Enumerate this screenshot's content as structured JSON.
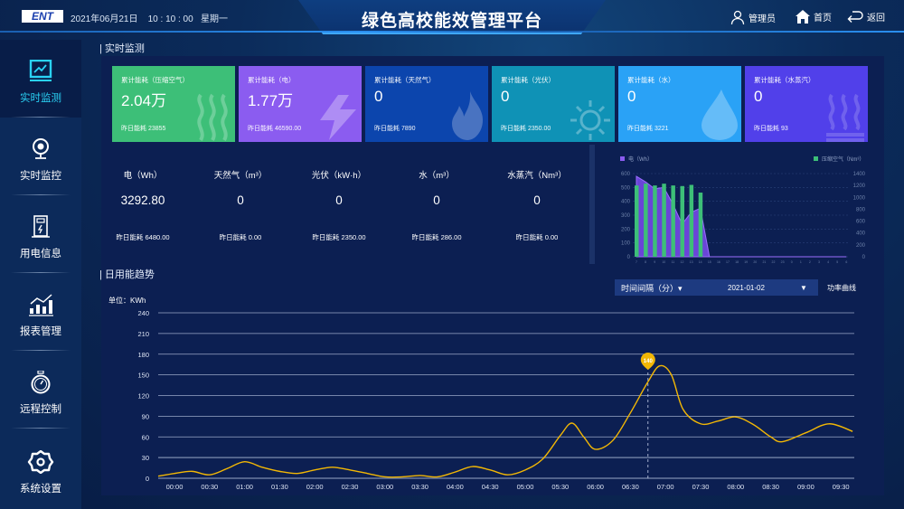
{
  "header": {
    "logo": "ENT",
    "date": "2021年06月21日",
    "time": "10 : 10 : 00",
    "weekday": "星期一",
    "title": "绿色高校能效管理平台",
    "user_label": "管理员",
    "home_label": "首页",
    "back_label": "返回"
  },
  "sidebar": {
    "items": [
      {
        "label": "实时监测",
        "icon": "monitor-chart-icon",
        "active": true
      },
      {
        "label": "实时监控",
        "icon": "webcam-icon"
      },
      {
        "label": "用电信息",
        "icon": "electric-cabinet-icon"
      },
      {
        "label": "报表管理",
        "icon": "bar-trend-icon"
      },
      {
        "label": "远程控制",
        "icon": "stopwatch-icon"
      },
      {
        "label": "系统设置",
        "icon": "gear-icon"
      }
    ]
  },
  "realtime": {
    "section_title": "实时监测",
    "cards": [
      {
        "title": "累计能耗（压缩空气）",
        "value": "2.04万",
        "yesterday": "昨日能耗 23855",
        "color": "#3dbf78",
        "icon": "steam-waves-icon"
      },
      {
        "title": "累计能耗（电）",
        "value": "1.77万",
        "yesterday": "昨日能耗 46590.00",
        "color": "#8b5cf0",
        "icon": "lightning-icon"
      },
      {
        "title": "累计能耗（天然气）",
        "value": "0",
        "yesterday": "昨日能耗 7890",
        "color": "#0c45ad",
        "icon": "flame-icon"
      },
      {
        "title": "累计能耗（光伏）",
        "value": "0",
        "yesterday": "昨日能耗 2350.00",
        "color": "#0f92b6",
        "icon": "sun-icon"
      },
      {
        "title": "累计能耗（水）",
        "value": "0",
        "yesterday": "昨日能耗 3221",
        "color": "#2aa2f6",
        "icon": "water-drop-icon"
      },
      {
        "title": "累计能耗（水蒸汽）",
        "value": "0",
        "yesterday": "昨日能耗 93",
        "color": "#5140ea",
        "icon": "steam-icon"
      }
    ],
    "stats": [
      {
        "title": "电（Wh）",
        "value": "3292.80",
        "yesterday": "昨日能耗 6480.00"
      },
      {
        "title": "天然气（m³）",
        "value": "0",
        "yesterday": "昨日能耗 0.00"
      },
      {
        "title": "光伏（kW·h）",
        "value": "0",
        "yesterday": "昨日能耗 2350.00"
      },
      {
        "title": "水（m³）",
        "value": "0",
        "yesterday": "昨日能耗 286.00"
      },
      {
        "title": "水蒸汽（Nm³）",
        "value": "0",
        "yesterday": "昨日能耗 0.00"
      }
    ]
  },
  "trend": {
    "section_title": "日用能趋势",
    "interval_label": "时间间隔（分）▾",
    "date_value": "2021-01-02",
    "date_arrow": "▼",
    "power_curve_label": "功率曲线",
    "unit_label": "单位：KWh"
  },
  "chart_data": [
    {
      "type": "bar",
      "categories": [
        "7",
        "8",
        "9",
        "10",
        "11",
        "12",
        "13",
        "14",
        "15",
        "16",
        "17",
        "18",
        "19",
        "20",
        "21",
        "22",
        "23",
        "0",
        "1",
        "2",
        "3",
        "4",
        "5",
        "6"
      ],
      "series": [
        {
          "name": "电（Wh）",
          "type": "area",
          "axis": "left",
          "color": "#8b5cf0",
          "values": [
            580,
            540,
            490,
            500,
            380,
            235,
            320,
            350,
            0,
            0,
            0,
            0,
            0,
            0,
            0,
            0,
            0,
            0,
            0,
            0,
            0,
            0,
            0,
            0
          ]
        },
        {
          "name": "压缩空气（Nm³）",
          "type": "bar",
          "axis": "right",
          "color": "#3dbf78",
          "values": [
            1200,
            1230,
            1200,
            1230,
            1200,
            1190,
            1210,
            1080,
            0,
            0,
            0,
            0,
            0,
            0,
            0,
            0,
            0,
            0,
            0,
            0,
            0,
            0,
            0,
            0
          ]
        }
      ],
      "ylim_left": [
        0,
        600
      ],
      "yticks_left": [
        0,
        100,
        200,
        300,
        400,
        500,
        600
      ],
      "ylim_right": [
        0,
        1400
      ],
      "yticks_right": [
        0,
        200,
        400,
        600,
        800,
        1000,
        1200,
        1400
      ],
      "legend": "top",
      "grid": true
    },
    {
      "type": "line",
      "ylabel": "单位：KWh",
      "ylim": [
        0,
        240
      ],
      "yticks": [
        0,
        30,
        60,
        90,
        120,
        150,
        180,
        210,
        240
      ],
      "xticks": [
        "00:00",
        "00:30",
        "01:00",
        "01:30",
        "02:00",
        "02:30",
        "03:00",
        "03:30",
        "04:00",
        "04:30",
        "05:00",
        "05:30",
        "06:00",
        "06:30",
        "07:00",
        "07:30",
        "08:00",
        "08:30",
        "09:00",
        "09:30"
      ],
      "color": "#f2b705",
      "grid": true,
      "tooltip": {
        "x": "06:45",
        "value": "140"
      },
      "points": [
        [
          "00:00",
          7
        ],
        [
          "00:15",
          10
        ],
        [
          "00:30",
          5
        ],
        [
          "00:45",
          14
        ],
        [
          "01:00",
          24
        ],
        [
          "01:15",
          16
        ],
        [
          "01:30",
          10
        ],
        [
          "01:45",
          7
        ],
        [
          "02:00",
          12
        ],
        [
          "02:15",
          16
        ],
        [
          "02:30",
          12
        ],
        [
          "02:45",
          7
        ],
        [
          "03:00",
          2
        ],
        [
          "03:15",
          2
        ],
        [
          "03:30",
          4
        ],
        [
          "03:45",
          2
        ],
        [
          "04:00",
          9
        ],
        [
          "04:15",
          17
        ],
        [
          "04:30",
          12
        ],
        [
          "04:45",
          5
        ],
        [
          "05:00",
          12
        ],
        [
          "05:15",
          28
        ],
        [
          "05:30",
          62
        ],
        [
          "05:40",
          80
        ],
        [
          "05:50",
          60
        ],
        [
          "06:00",
          42
        ],
        [
          "06:15",
          55
        ],
        [
          "06:30",
          95
        ],
        [
          "06:45",
          140
        ],
        [
          "06:55",
          163
        ],
        [
          "07:05",
          150
        ],
        [
          "07:15",
          100
        ],
        [
          "07:30",
          79
        ],
        [
          "07:45",
          83
        ],
        [
          "08:00",
          89
        ],
        [
          "08:15",
          78
        ],
        [
          "08:30",
          60
        ],
        [
          "08:40",
          53
        ],
        [
          "09:00",
          66
        ],
        [
          "09:20",
          79
        ],
        [
          "09:40",
          68
        ]
      ]
    }
  ]
}
